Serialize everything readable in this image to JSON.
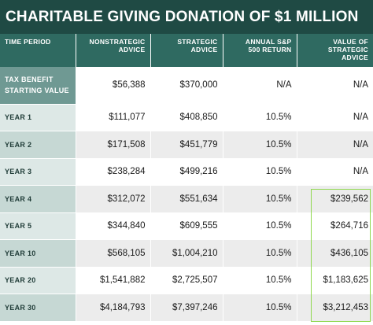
{
  "title": "CHARITABLE GIVING DONATION OF $1 MILLION",
  "headers": [
    "TIME PERIOD",
    "NONSTRATEGIC\nADVICE",
    "STRATEGIC\nADVICE",
    "ANNUAL S&P\n500 RETURN",
    "VALUE OF\nSTRATEGIC\nADVICE"
  ],
  "rows": [
    {
      "period": "TAX BENEFIT\nSTARTING VALUE",
      "nonstrategic": "$56,388",
      "strategic": "$370,000",
      "return": "N/A",
      "value": "N/A"
    },
    {
      "period": "YEAR 1",
      "nonstrategic": "$111,077",
      "strategic": "$408,850",
      "return": "10.5%",
      "value": "N/A"
    },
    {
      "period": "YEAR 2",
      "nonstrategic": "$171,508",
      "strategic": "$451,779",
      "return": "10.5%",
      "value": "N/A"
    },
    {
      "period": "YEAR 3",
      "nonstrategic": "$238,284",
      "strategic": "$499,216",
      "return": "10.5%",
      "value": "N/A"
    },
    {
      "period": "YEAR 4",
      "nonstrategic": "$312,072",
      "strategic": "$551,634",
      "return": "10.5%",
      "value": "$239,562"
    },
    {
      "period": "YEAR 5",
      "nonstrategic": "$344,840",
      "strategic": "$609,555",
      "return": "10.5%",
      "value": "$264,716"
    },
    {
      "period": "YEAR 10",
      "nonstrategic": "$568,105",
      "strategic": "$1,004,210",
      "return": "10.5%",
      "value": "$436,105"
    },
    {
      "period": "YEAR 20",
      "nonstrategic": "$1,541,882",
      "strategic": "$2,725,507",
      "return": "10.5%",
      "value": "$1,183,625"
    },
    {
      "period": "YEAR 30",
      "nonstrategic": "$4,184,793",
      "strategic": "$7,397,246",
      "return": "10.5%",
      "value": "$3,212,453"
    }
  ],
  "colors": {
    "title_bg": "#1f4a44",
    "header_bg": "#2f6a61",
    "highlight": "#8fd84e"
  }
}
